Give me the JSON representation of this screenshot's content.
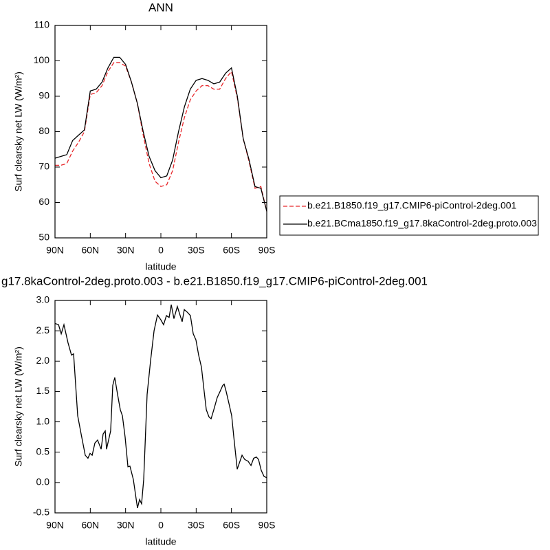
{
  "chart_data": [
    {
      "type": "line",
      "title": "ANN",
      "xlabel": "latitude",
      "ylabel": "Surf clearsky net LW (W/m²)",
      "xlim": [
        90,
        -90
      ],
      "xticks": [
        {
          "value": 90,
          "label": "90N"
        },
        {
          "value": 60,
          "label": "60N"
        },
        {
          "value": 30,
          "label": "30N"
        },
        0,
        {
          "value": -30,
          "label": "30S"
        },
        {
          "value": -60,
          "label": "60S"
        },
        {
          "value": -90,
          "label": "90S"
        }
      ],
      "ylim": [
        50,
        110
      ],
      "yticks": [
        50,
        60,
        70,
        80,
        90,
        100,
        110
      ],
      "legend": "right",
      "x": [
        90,
        85,
        80,
        75,
        70,
        65,
        60,
        55,
        50,
        45,
        40,
        35,
        30,
        25,
        20,
        15,
        10,
        5,
        0,
        -5,
        -10,
        -15,
        -20,
        -25,
        -30,
        -35,
        -40,
        -45,
        -50,
        -55,
        -60,
        -65,
        -70,
        -75,
        -80,
        -85,
        -90
      ],
      "series": [
        {
          "name": "b.e21.B1850.f19_g17.CMIP6-piControl-2deg.001",
          "color": "#e8272a",
          "linestyle": "dashed",
          "values": [
            70.5,
            70.5,
            71,
            74.5,
            77,
            80,
            90.5,
            91,
            93,
            97,
            99.5,
            99.5,
            98.5,
            94,
            88,
            79,
            71,
            66,
            64.5,
            65,
            69,
            77,
            84,
            89,
            91.5,
            93,
            93,
            92,
            92,
            95,
            97,
            89.5,
            78,
            71.5,
            64,
            64.5,
            57.5
          ]
        },
        {
          "name": "b.e21.BCma1850.f19_g17.8kaControl-2deg.proto.003",
          "color": "#000000",
          "linestyle": "solid",
          "values": [
            72.5,
            73,
            73.5,
            77.5,
            79,
            80.5,
            91.5,
            92,
            94,
            98,
            101,
            101,
            99,
            94,
            88,
            80,
            73,
            69,
            67,
            67.5,
            72,
            80,
            87,
            92,
            94.5,
            95,
            94.5,
            93.5,
            94,
            96.5,
            98,
            90,
            78,
            72,
            64.5,
            64,
            57.5
          ]
        }
      ]
    },
    {
      "type": "line",
      "title": "g17.8kaControl-2deg.proto.003 - b.e21.B1850.f19_g17.CMIP6-piControl-2deg.001",
      "xlabel": "latitude",
      "ylabel": "Surf clearsky net LW (W/m²)",
      "xlim": [
        90,
        -90
      ],
      "xticks": [
        {
          "value": 90,
          "label": "90N"
        },
        {
          "value": 60,
          "label": "60N"
        },
        {
          "value": 30,
          "label": "30N"
        },
        0,
        {
          "value": -30,
          "label": "30S"
        },
        {
          "value": -60,
          "label": "60S"
        },
        {
          "value": -90,
          "label": "90S"
        }
      ],
      "ylim": [
        -0.5,
        3.0
      ],
      "yticks": [
        {
          "value": -0.5,
          "label": "-0.5"
        },
        {
          "value": 0,
          "label": "0.0"
        },
        0.5,
        {
          "value": 1,
          "label": "1.0"
        },
        1.5,
        {
          "value": 2,
          "label": "2.0"
        },
        2.5,
        {
          "value": 3,
          "label": "3.0"
        }
      ],
      "color": "#000000",
      "x": [
        90,
        87,
        84.7,
        82.4,
        78.9,
        76,
        74.2,
        70.7,
        67.8,
        64.3,
        62,
        60.2,
        58.4,
        56.1,
        53.8,
        50.8,
        49.1,
        47.3,
        46.2,
        42.7,
        40.9,
        39.2,
        36.8,
        34.5,
        32.7,
        30.4,
        28,
        26.3,
        23.4,
        19.9,
        18.1,
        16.4,
        14.6,
        11.7,
        8.8,
        5.8,
        2.9,
        0,
        -2.3,
        -4.7,
        -7,
        -8.8,
        -11.1,
        -14,
        -16.4,
        -18.1,
        -19.9,
        -22.8,
        -25.1,
        -27.5,
        -29.8,
        -32.1,
        -34.5,
        -36.8,
        -38.6,
        -40.9,
        -42.7,
        -45,
        -47.9,
        -50.3,
        -52.6,
        -53.8,
        -55.5,
        -57.9,
        -60.2,
        -62,
        -64.9,
        -69,
        -71.3,
        -74.2,
        -76.6,
        -78.9,
        -81.2,
        -83,
        -85.3,
        -87.7,
        -90
      ],
      "values": [
        2.62,
        2.6,
        2.45,
        2.6,
        2.3,
        2.1,
        2.12,
        1.1,
        0.8,
        0.45,
        0.4,
        0.48,
        0.45,
        0.65,
        0.7,
        0.55,
        0.8,
        0.85,
        0.55,
        0.85,
        1.6,
        1.73,
        1.45,
        1.2,
        1.1,
        0.75,
        0.26,
        0.27,
        0.05,
        -0.42,
        -0.28,
        -0.35,
        0.05,
        1.45,
        2.0,
        2.5,
        2.76,
        2.68,
        2.6,
        2.75,
        2.72,
        2.93,
        2.7,
        2.9,
        2.75,
        2.65,
        2.85,
        2.8,
        2.75,
        2.45,
        2.35,
        2.1,
        1.9,
        1.5,
        1.2,
        1.08,
        1.05,
        1.2,
        1.4,
        1.5,
        1.6,
        1.62,
        1.5,
        1.3,
        1.1,
        0.75,
        0.22,
        0.45,
        0.38,
        0.35,
        0.28,
        0.4,
        0.42,
        0.38,
        0.2,
        0.1,
        0.08
      ]
    }
  ]
}
